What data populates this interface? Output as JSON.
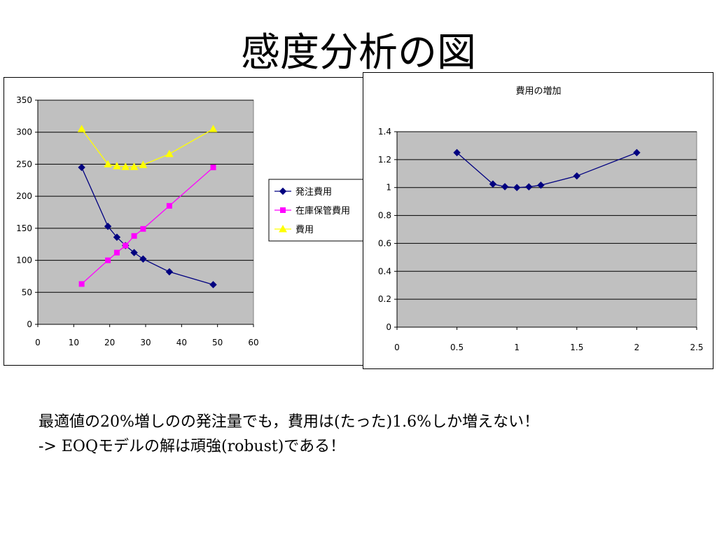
{
  "slide": {
    "title": "感度分析の図",
    "caption_line1": "最適値の20%増しのの発注量でも，費用は(たった)1.6%しか増えない！",
    "caption_line2": "-> EOQモデルの解は頑強(robust)である！"
  },
  "chart_data": [
    {
      "type": "line",
      "title": "",
      "xlabel": "",
      "ylabel": "",
      "xlim": [
        0,
        60
      ],
      "ylim": [
        0,
        350
      ],
      "xticks": [
        0,
        10,
        20,
        30,
        40,
        50,
        60
      ],
      "yticks": [
        0,
        50,
        100,
        150,
        200,
        250,
        300,
        350
      ],
      "grid": "horizontal",
      "legend_position": "right",
      "plot_background": "#c0c0c0",
      "series": [
        {
          "name": "発注費用",
          "color": "#000080",
          "marker": "diamond",
          "x": [
            12.2,
            19.5,
            22.0,
            24.4,
            26.8,
            29.3,
            36.6,
            48.8
          ],
          "y": [
            245,
            153,
            136,
            123,
            112,
            102,
            82,
            62
          ]
        },
        {
          "name": "在庫保管費用",
          "color": "#ff00ff",
          "marker": "square",
          "x": [
            12.2,
            19.5,
            22.0,
            24.4,
            26.8,
            29.3,
            36.6,
            48.8
          ],
          "y": [
            63,
            100,
            112,
            123,
            138,
            149,
            185,
            245
          ]
        },
        {
          "name": "費用",
          "color": "#ffff00",
          "marker": "triangle",
          "x": [
            12.2,
            19.5,
            22.0,
            24.4,
            26.8,
            29.3,
            36.6,
            48.8
          ],
          "y": [
            305,
            250,
            247,
            246,
            246,
            249,
            266,
            305
          ]
        }
      ]
    },
    {
      "type": "line",
      "title": "費用の増加",
      "xlabel": "",
      "ylabel": "",
      "xlim": [
        0,
        2.5
      ],
      "ylim": [
        0,
        1.4
      ],
      "xticks": [
        0,
        0.5,
        1,
        1.5,
        2,
        2.5
      ],
      "yticks": [
        0,
        0.2,
        0.4,
        0.6,
        0.8,
        1,
        1.2,
        1.4
      ],
      "grid": "horizontal",
      "legend_position": "none",
      "plot_background": "#c0c0c0",
      "series": [
        {
          "color": "#000080",
          "marker": "diamond",
          "x": [
            0.5,
            0.8,
            0.9,
            1.0,
            1.1,
            1.2,
            1.5,
            2.0
          ],
          "y": [
            1.25,
            1.025,
            1.006,
            1.0,
            1.005,
            1.017,
            1.083,
            1.25
          ]
        }
      ]
    }
  ]
}
